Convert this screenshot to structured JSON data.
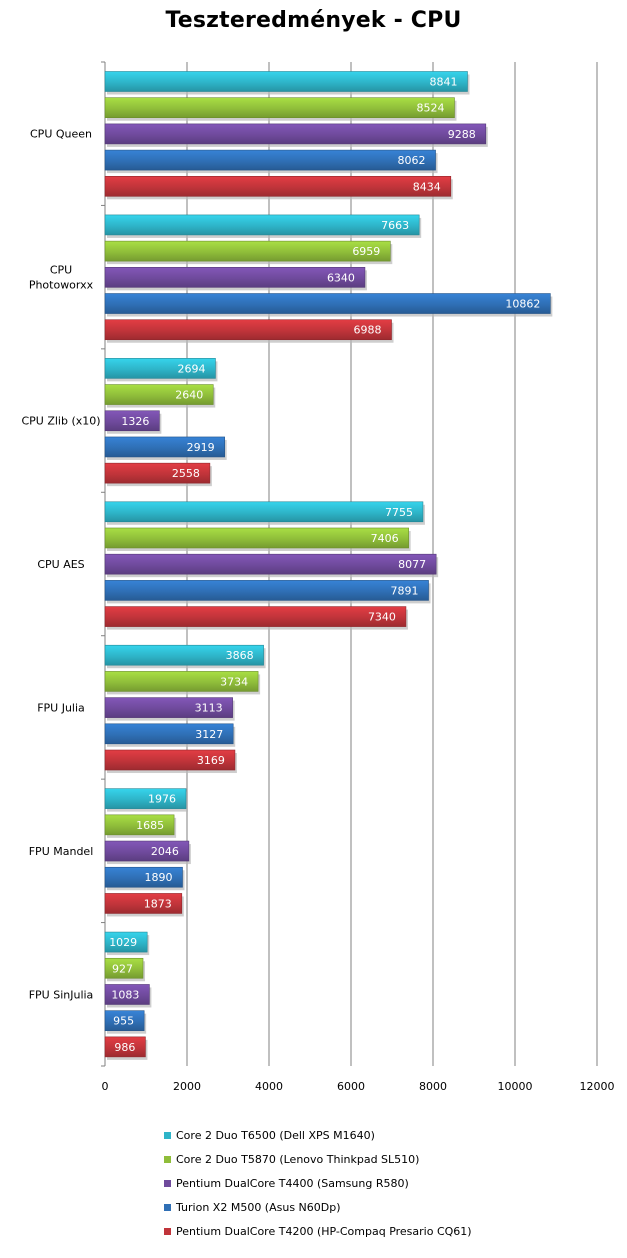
{
  "chart_data": {
    "type": "bar",
    "orientation": "horizontal",
    "title": "Teszteredmények - CPU",
    "categories": [
      "CPU Queen",
      "CPU Photoworxx",
      "CPU Zlib (x10)",
      "CPU AES",
      "FPU Julia",
      "FPU Mandel",
      "FPU SinJulia"
    ],
    "category_lines": [
      [
        "CPU Queen"
      ],
      [
        "CPU",
        "Photoworxx"
      ],
      [
        "CPU Zlib (x10)"
      ],
      [
        "CPU AES"
      ],
      [
        "FPU Julia"
      ],
      [
        "FPU Mandel"
      ],
      [
        "FPU SinJulia"
      ]
    ],
    "series": [
      {
        "name": "Core 2 Duo T6500 (Dell XPS M1640)",
        "color": "#2eb4c8",
        "values": [
          8841,
          7663,
          2694,
          7755,
          3868,
          1976,
          1029
        ]
      },
      {
        "name": "Core 2 Duo T5870 (Lenovo Thinkpad SL510)",
        "color": "#8fbd3a",
        "values": [
          8524,
          6959,
          2640,
          7406,
          3734,
          1685,
          927
        ]
      },
      {
        "name": "Pentium DualCore T4400 (Samsung R580)",
        "color": "#6f4a9c",
        "values": [
          9288,
          6340,
          1326,
          8077,
          3113,
          2046,
          1083
        ]
      },
      {
        "name": "Turion X2 M500 (Asus N60Dp)",
        "color": "#2f6fb5",
        "values": [
          8062,
          10862,
          2919,
          7891,
          3127,
          1890,
          955
        ]
      },
      {
        "name": "Pentium DualCore T4200 (HP-Compaq Presario CQ61)",
        "color": "#c0343a",
        "values": [
          8434,
          6988,
          2558,
          7340,
          3169,
          1873,
          986
        ]
      }
    ],
    "xlim": [
      0,
      12000
    ],
    "xticks": [
      0,
      2000,
      4000,
      6000,
      8000,
      10000,
      12000
    ],
    "grid": true,
    "legend_position": "bottom"
  }
}
